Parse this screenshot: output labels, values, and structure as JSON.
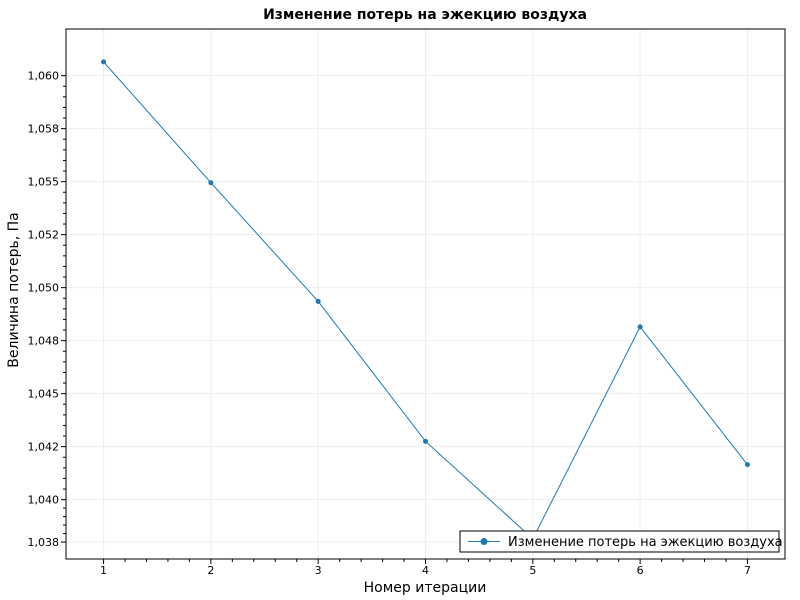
{
  "chart_data": {
    "type": "line",
    "title": "Изменение потерь на эжекцию воздуха",
    "xlabel": "Номер итерации",
    "ylabel": "Величина потерь, Па",
    "x": [
      1,
      2,
      3,
      4,
      5,
      6,
      7
    ],
    "series": [
      {
        "name": "Изменение потерь на эжекцию воздуха",
        "values": [
          1.06065,
          1.05495,
          1.04935,
          1.04275,
          1.03815,
          1.04815,
          1.04165
        ],
        "color": "#1f77b4"
      }
    ],
    "xticks": [
      "1",
      "2",
      "3",
      "4",
      "5",
      "6",
      "7"
    ],
    "yticks": [
      {
        "value": 1.038,
        "label": "1,038"
      },
      {
        "value": 1.04,
        "label": "1,040"
      },
      {
        "value": 1.0425,
        "label": "1,042"
      },
      {
        "value": 1.045,
        "label": "1,045"
      },
      {
        "value": 1.0475,
        "label": "1,048"
      },
      {
        "value": 1.05,
        "label": "1,050"
      },
      {
        "value": 1.0525,
        "label": "1,052"
      },
      {
        "value": 1.055,
        "label": "1,055"
      },
      {
        "value": 1.0575,
        "label": "1,058"
      },
      {
        "value": 1.06,
        "label": "1,060"
      }
    ],
    "xlim": [
      0.65,
      7.35
    ],
    "ylim": [
      1.0372,
      1.0622
    ],
    "grid": true,
    "legend_position": "bottom-right",
    "marker": "circle"
  }
}
